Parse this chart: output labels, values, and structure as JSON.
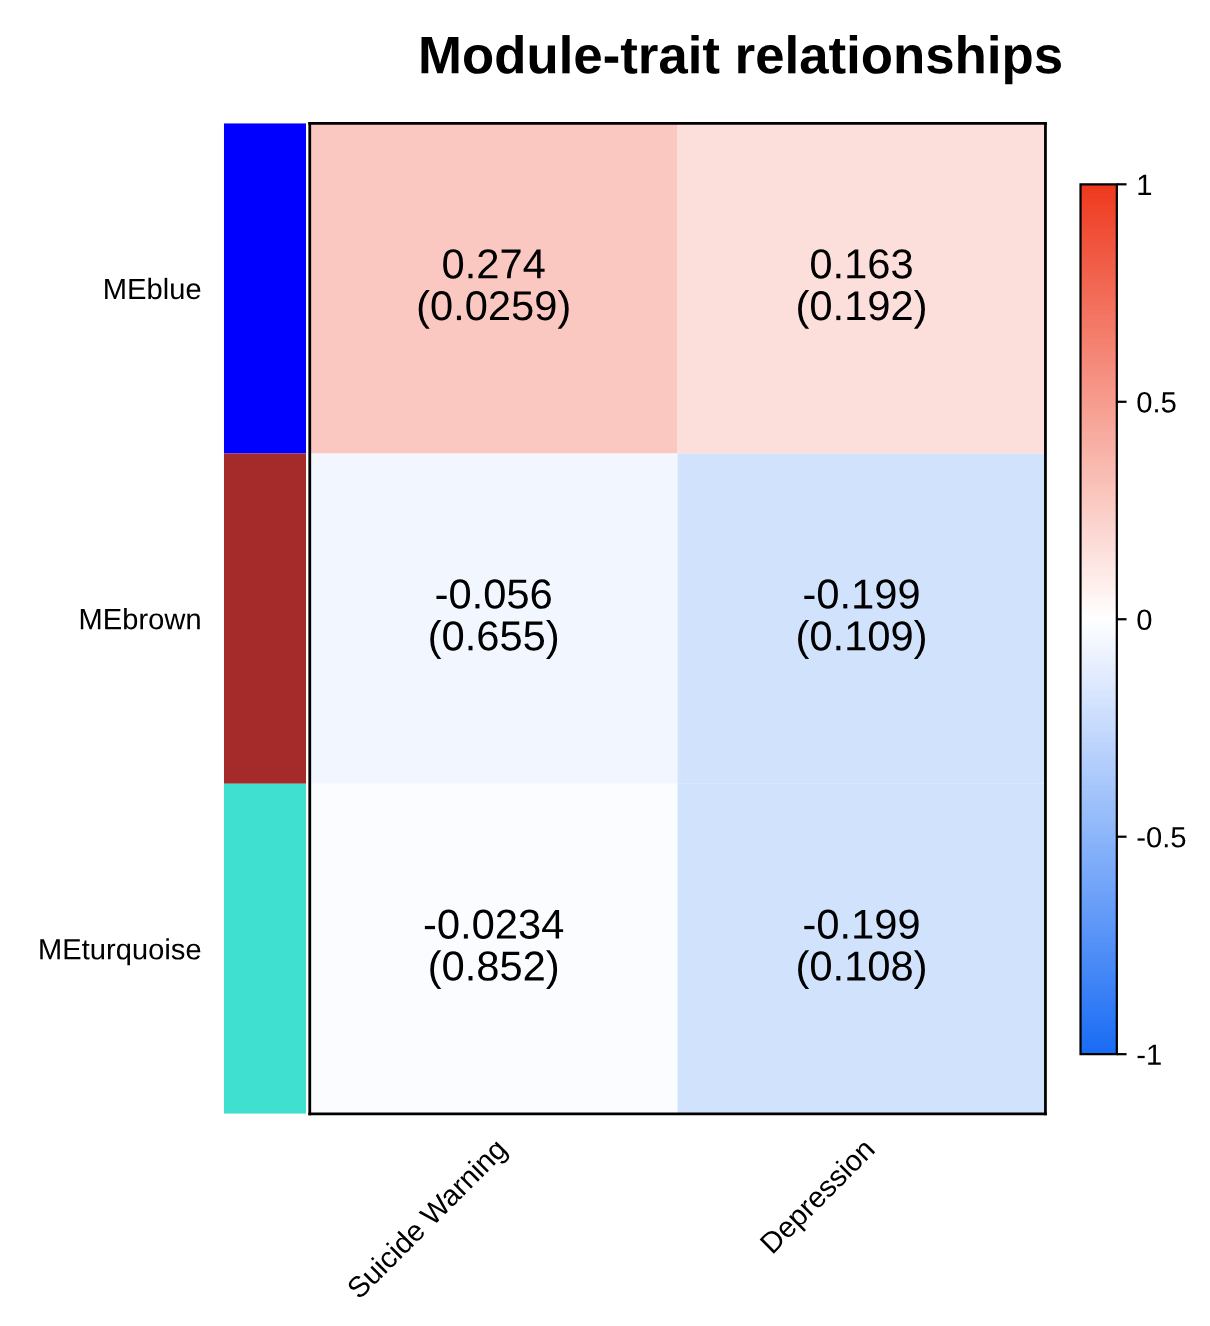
{
  "chart_data": {
    "type": "heatmap",
    "title": "Module-trait relationships",
    "categories": [
      "Suicide Warning",
      "Depression"
    ],
    "y_categories": [
      "MEblue",
      "MEbrown",
      "MEturquoise"
    ],
    "cells": [
      [
        0.274,
        0.163
      ],
      [
        -0.056,
        -0.199
      ],
      [
        -0.0234,
        -0.199
      ]
    ],
    "cell_labels": [
      [
        "0.274\n(0.0259)",
        "0.163\n(0.192)"
      ],
      [
        "-0.056\n(0.655)",
        "-0.199\n(0.109)"
      ],
      [
        "-0.0234\n(0.852)",
        "-0.199\n(0.108)"
      ]
    ],
    "clim": [
      -1,
      1
    ],
    "cticks": [
      {
        "value": -1,
        "label": "-1"
      },
      {
        "value": -0.5,
        "label": "-0.5"
      },
      {
        "value": 0,
        "label": "0"
      },
      {
        "value": 0.5,
        "label": "0.5"
      },
      {
        "value": 1,
        "label": "1"
      }
    ]
  }
}
